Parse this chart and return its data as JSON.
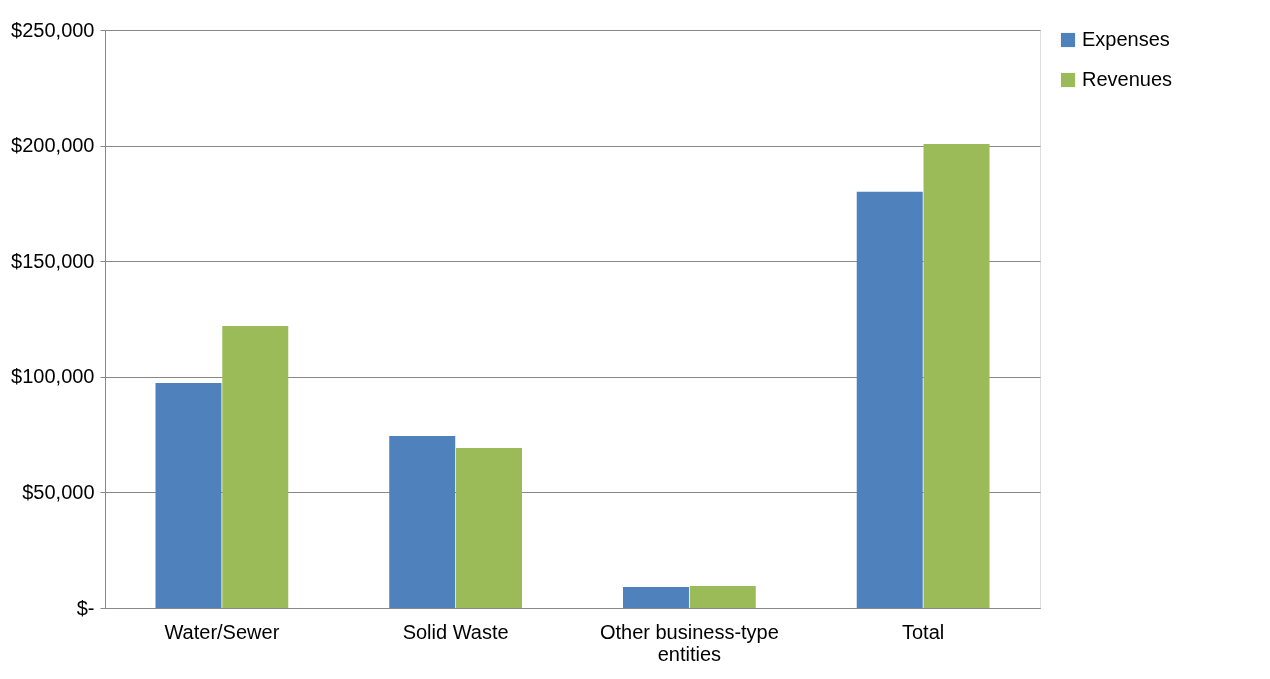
{
  "chart_data": {
    "type": "bar",
    "categories": [
      "Water/Sewer",
      "Solid Waste",
      "Other business-type entities",
      "Total"
    ],
    "series": [
      {
        "name": "Expenses",
        "color": "#4f81bd",
        "values": [
          97300,
          74400,
          9100,
          180000
        ]
      },
      {
        "name": "Revenues",
        "color": "#9bbb59",
        "values": [
          122000,
          69200,
          9500,
          200700
        ]
      }
    ],
    "ylim": [
      0,
      250000
    ],
    "yticks": [
      {
        "value": 0,
        "label": "$-"
      },
      {
        "value": 50000,
        "label": "$50,000"
      },
      {
        "value": 100000,
        "label": "$100,000"
      },
      {
        "value": 150000,
        "label": "$150,000"
      },
      {
        "value": 200000,
        "label": "$200,000"
      },
      {
        "value": 250000,
        "label": "$250,000"
      }
    ],
    "grid": "y",
    "legend": "right"
  }
}
